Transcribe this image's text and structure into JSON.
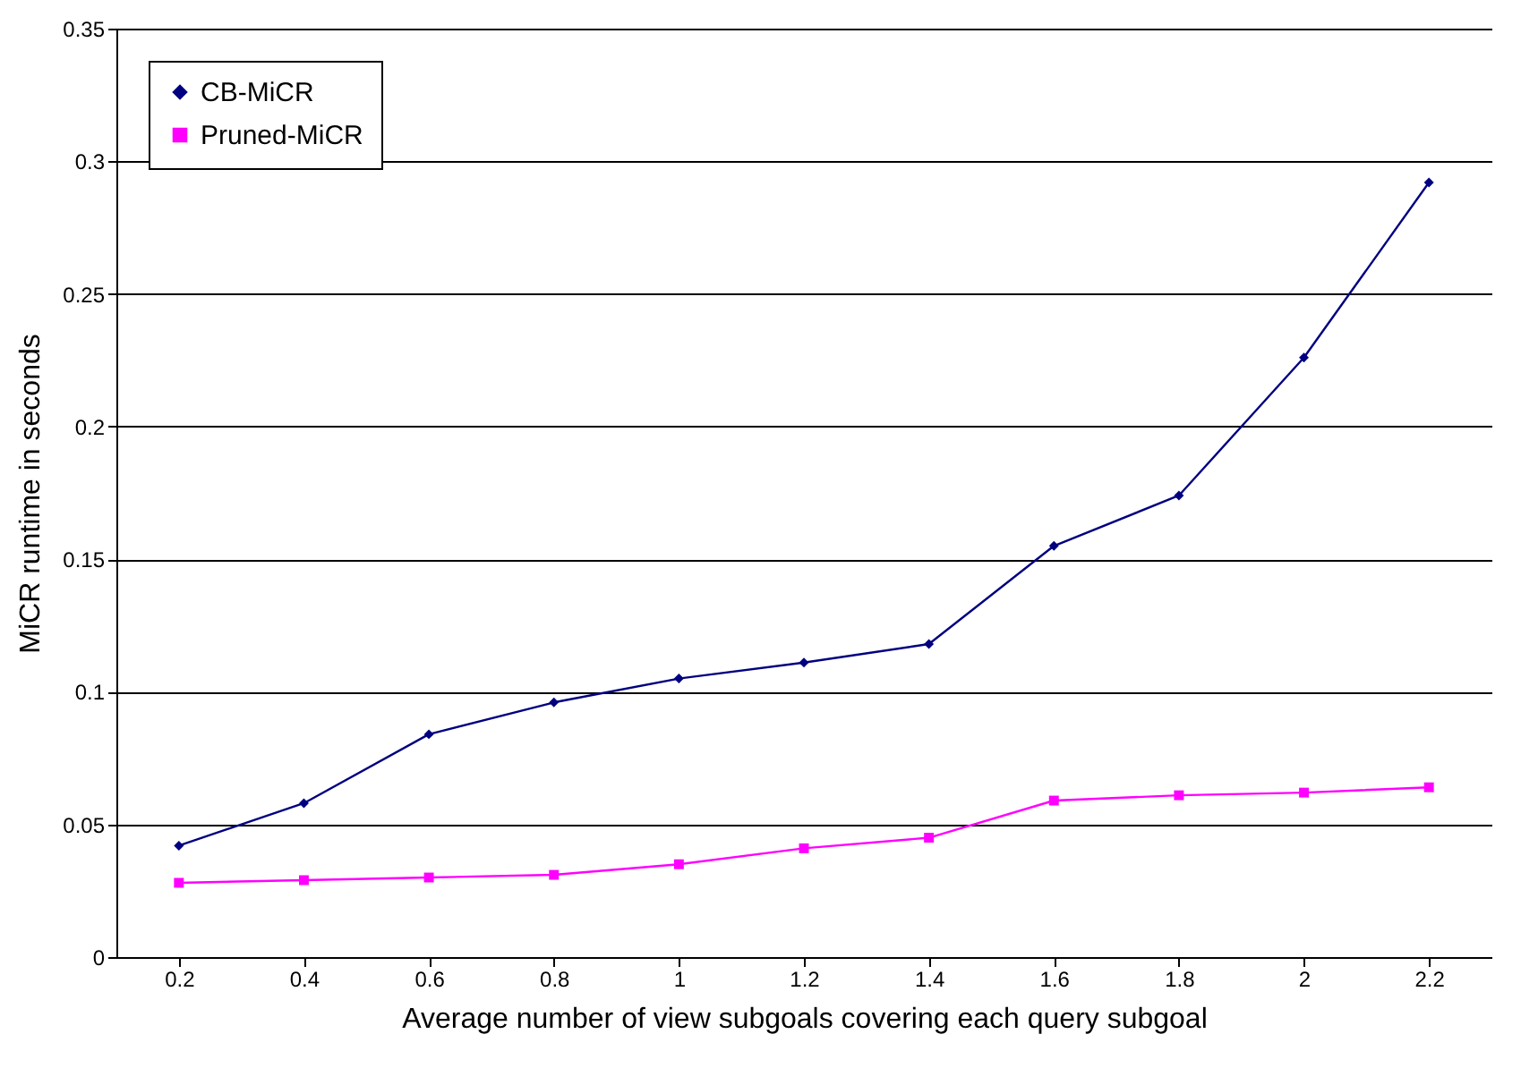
{
  "chart_data": {
    "type": "line",
    "xlabel": "Average number of view subgoals covering each query subgoal",
    "ylabel": "MiCR runtime in seconds",
    "categories": [
      "0.2",
      "0.4",
      "0.6",
      "0.8",
      "1",
      "1.2",
      "1.4",
      "1.6",
      "1.8",
      "2",
      "2.2"
    ],
    "series": [
      {
        "name": "CB-MiCR",
        "color": "#000080",
        "marker": "diamond",
        "values": [
          0.042,
          0.058,
          0.084,
          0.096,
          0.105,
          0.111,
          0.118,
          0.155,
          0.174,
          0.226,
          0.292
        ]
      },
      {
        "name": "Pruned-MiCR",
        "color": "#ff00ff",
        "marker": "square",
        "values": [
          0.028,
          0.029,
          0.03,
          0.031,
          0.035,
          0.041,
          0.045,
          0.059,
          0.061,
          0.062,
          0.064
        ]
      }
    ],
    "ylim": [
      0,
      0.35
    ],
    "yticks": [
      0,
      0.05,
      0.1,
      0.15,
      0.2,
      0.25,
      0.3,
      0.35
    ],
    "grid": "y",
    "legend": "top left",
    "line_style": "solid"
  }
}
